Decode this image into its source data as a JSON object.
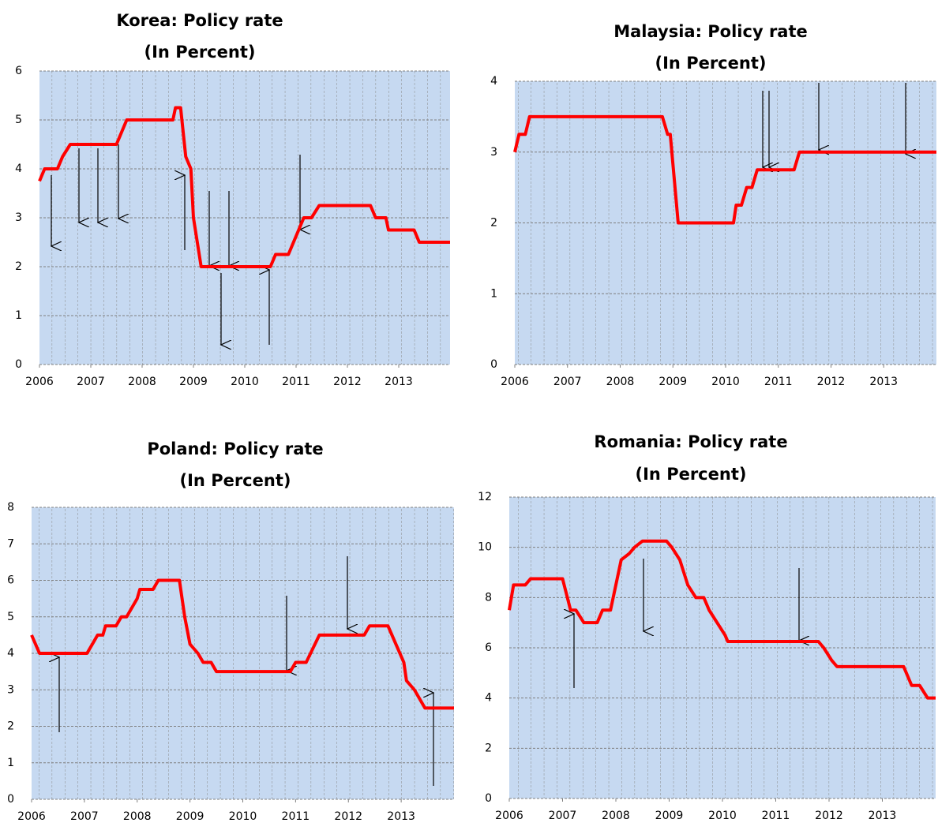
{
  "chart_data": [
    {
      "type": "line",
      "title": "Korea: Policy rate",
      "subtitle": "(In Percent)",
      "xlim": [
        2006,
        2014
      ],
      "xticks": [
        2006,
        2007,
        2008,
        2009,
        2010,
        2011,
        2012,
        2013
      ],
      "ylim": [
        0,
        6
      ],
      "yticks": [
        0,
        1,
        2,
        3,
        4,
        5,
        6
      ],
      "grid": true,
      "series": [
        {
          "color": "#ff0000",
          "x": [
            2006.0,
            2006.1,
            2006.35,
            2006.45,
            2006.6,
            2007.5,
            2007.6,
            2007.7,
            2008.6,
            2008.65,
            2008.75,
            2008.85,
            2008.95,
            2009.0,
            2009.15,
            2010.5,
            2010.6,
            2010.85,
            2010.95,
            2011.05,
            2011.15,
            2011.3,
            2011.45,
            2012.45,
            2012.55,
            2012.75,
            2012.8,
            2013.3,
            2013.4,
            2014.0
          ],
          "values": [
            3.75,
            4.0,
            4.0,
            4.25,
            4.5,
            4.5,
            4.75,
            5.0,
            5.0,
            5.25,
            5.25,
            4.25,
            4.0,
            3.0,
            2.0,
            2.0,
            2.25,
            2.25,
            2.5,
            2.75,
            3.0,
            3.0,
            3.25,
            3.25,
            3.0,
            3.0,
            2.75,
            2.75,
            2.5,
            2.5
          ]
        }
      ]
    },
    {
      "type": "line",
      "title": "Malaysia: Policy rate",
      "subtitle": "(In Percent)",
      "xlim": [
        2006,
        2014
      ],
      "xticks": [
        2006,
        2007,
        2008,
        2009,
        2010,
        2011,
        2012,
        2013
      ],
      "ylim": [
        0,
        4
      ],
      "yticks": [
        0,
        1,
        2,
        3,
        4
      ],
      "grid": true,
      "series": [
        {
          "color": "#ff0000",
          "x": [
            2006.0,
            2006.08,
            2006.2,
            2006.28,
            2008.8,
            2008.9,
            2008.95,
            2009.1,
            2010.15,
            2010.2,
            2010.3,
            2010.4,
            2010.5,
            2010.6,
            2011.3,
            2011.4,
            2014.0
          ],
          "values": [
            3.0,
            3.25,
            3.25,
            3.5,
            3.5,
            3.25,
            3.25,
            2.0,
            2.0,
            2.25,
            2.25,
            2.5,
            2.5,
            2.75,
            2.75,
            3.0,
            3.0
          ]
        }
      ]
    },
    {
      "type": "line",
      "title": "Poland: Policy rate",
      "subtitle": "(In Percent)",
      "xlim": [
        2006,
        2014
      ],
      "xticks": [
        2006,
        2007,
        2008,
        2009,
        2010,
        2011,
        2012,
        2013
      ],
      "ylim": [
        0,
        8
      ],
      "yticks": [
        0,
        1,
        2,
        3,
        4,
        5,
        6,
        7,
        8
      ],
      "grid": true,
      "series": [
        {
          "color": "#ff0000",
          "x": [
            2006.0,
            2006.15,
            2007.05,
            2007.15,
            2007.25,
            2007.35,
            2007.4,
            2007.6,
            2007.7,
            2007.8,
            2008.0,
            2008.05,
            2008.3,
            2008.4,
            2008.8,
            2008.9,
            2009.0,
            2009.15,
            2009.25,
            2009.4,
            2009.5,
            2010.9,
            2011.0,
            2011.2,
            2011.45,
            2012.3,
            2012.4,
            2012.75,
            2012.9,
            2013.05,
            2013.1,
            2013.25,
            2013.45,
            2014.0
          ],
          "values": [
            4.5,
            4.0,
            4.0,
            4.25,
            4.5,
            4.5,
            4.75,
            4.75,
            5.0,
            5.0,
            5.5,
            5.75,
            5.75,
            6.0,
            6.0,
            5.0,
            4.25,
            4.0,
            3.75,
            3.75,
            3.5,
            3.5,
            3.75,
            3.75,
            4.5,
            4.5,
            4.75,
            4.75,
            4.25,
            3.75,
            3.25,
            3.0,
            2.5,
            2.5
          ]
        }
      ]
    },
    {
      "type": "line",
      "title": "Romania: Policy rate",
      "subtitle": "(In Percent)",
      "xlim": [
        2006,
        2014
      ],
      "xticks": [
        2006,
        2007,
        2008,
        2009,
        2010,
        2011,
        2012,
        2013
      ],
      "ylim": [
        0,
        12
      ],
      "yticks": [
        0,
        2,
        4,
        6,
        8,
        10,
        12
      ],
      "grid": true,
      "series": [
        {
          "color": "#ff0000",
          "x": [
            2006.0,
            2006.08,
            2006.3,
            2006.4,
            2007.0,
            2007.15,
            2007.25,
            2007.4,
            2007.65,
            2007.75,
            2007.9,
            2008.1,
            2008.25,
            2008.35,
            2008.5,
            2008.95,
            2009.05,
            2009.2,
            2009.35,
            2009.5,
            2009.65,
            2009.75,
            2009.9,
            2010.05,
            2010.1,
            2011.8,
            2011.9,
            2012.05,
            2012.15,
            2013.4,
            2013.55,
            2013.7,
            2013.85,
            2014.0
          ],
          "values": [
            7.5,
            8.5,
            8.5,
            8.75,
            8.75,
            7.5,
            7.5,
            7.0,
            7.0,
            7.5,
            7.5,
            9.5,
            9.75,
            10.0,
            10.25,
            10.25,
            10.0,
            9.5,
            8.5,
            8.0,
            8.0,
            7.5,
            7.0,
            6.5,
            6.25,
            6.25,
            6.0,
            5.5,
            5.25,
            5.25,
            4.5,
            4.5,
            4.0,
            4.0
          ]
        }
      ]
    }
  ]
}
